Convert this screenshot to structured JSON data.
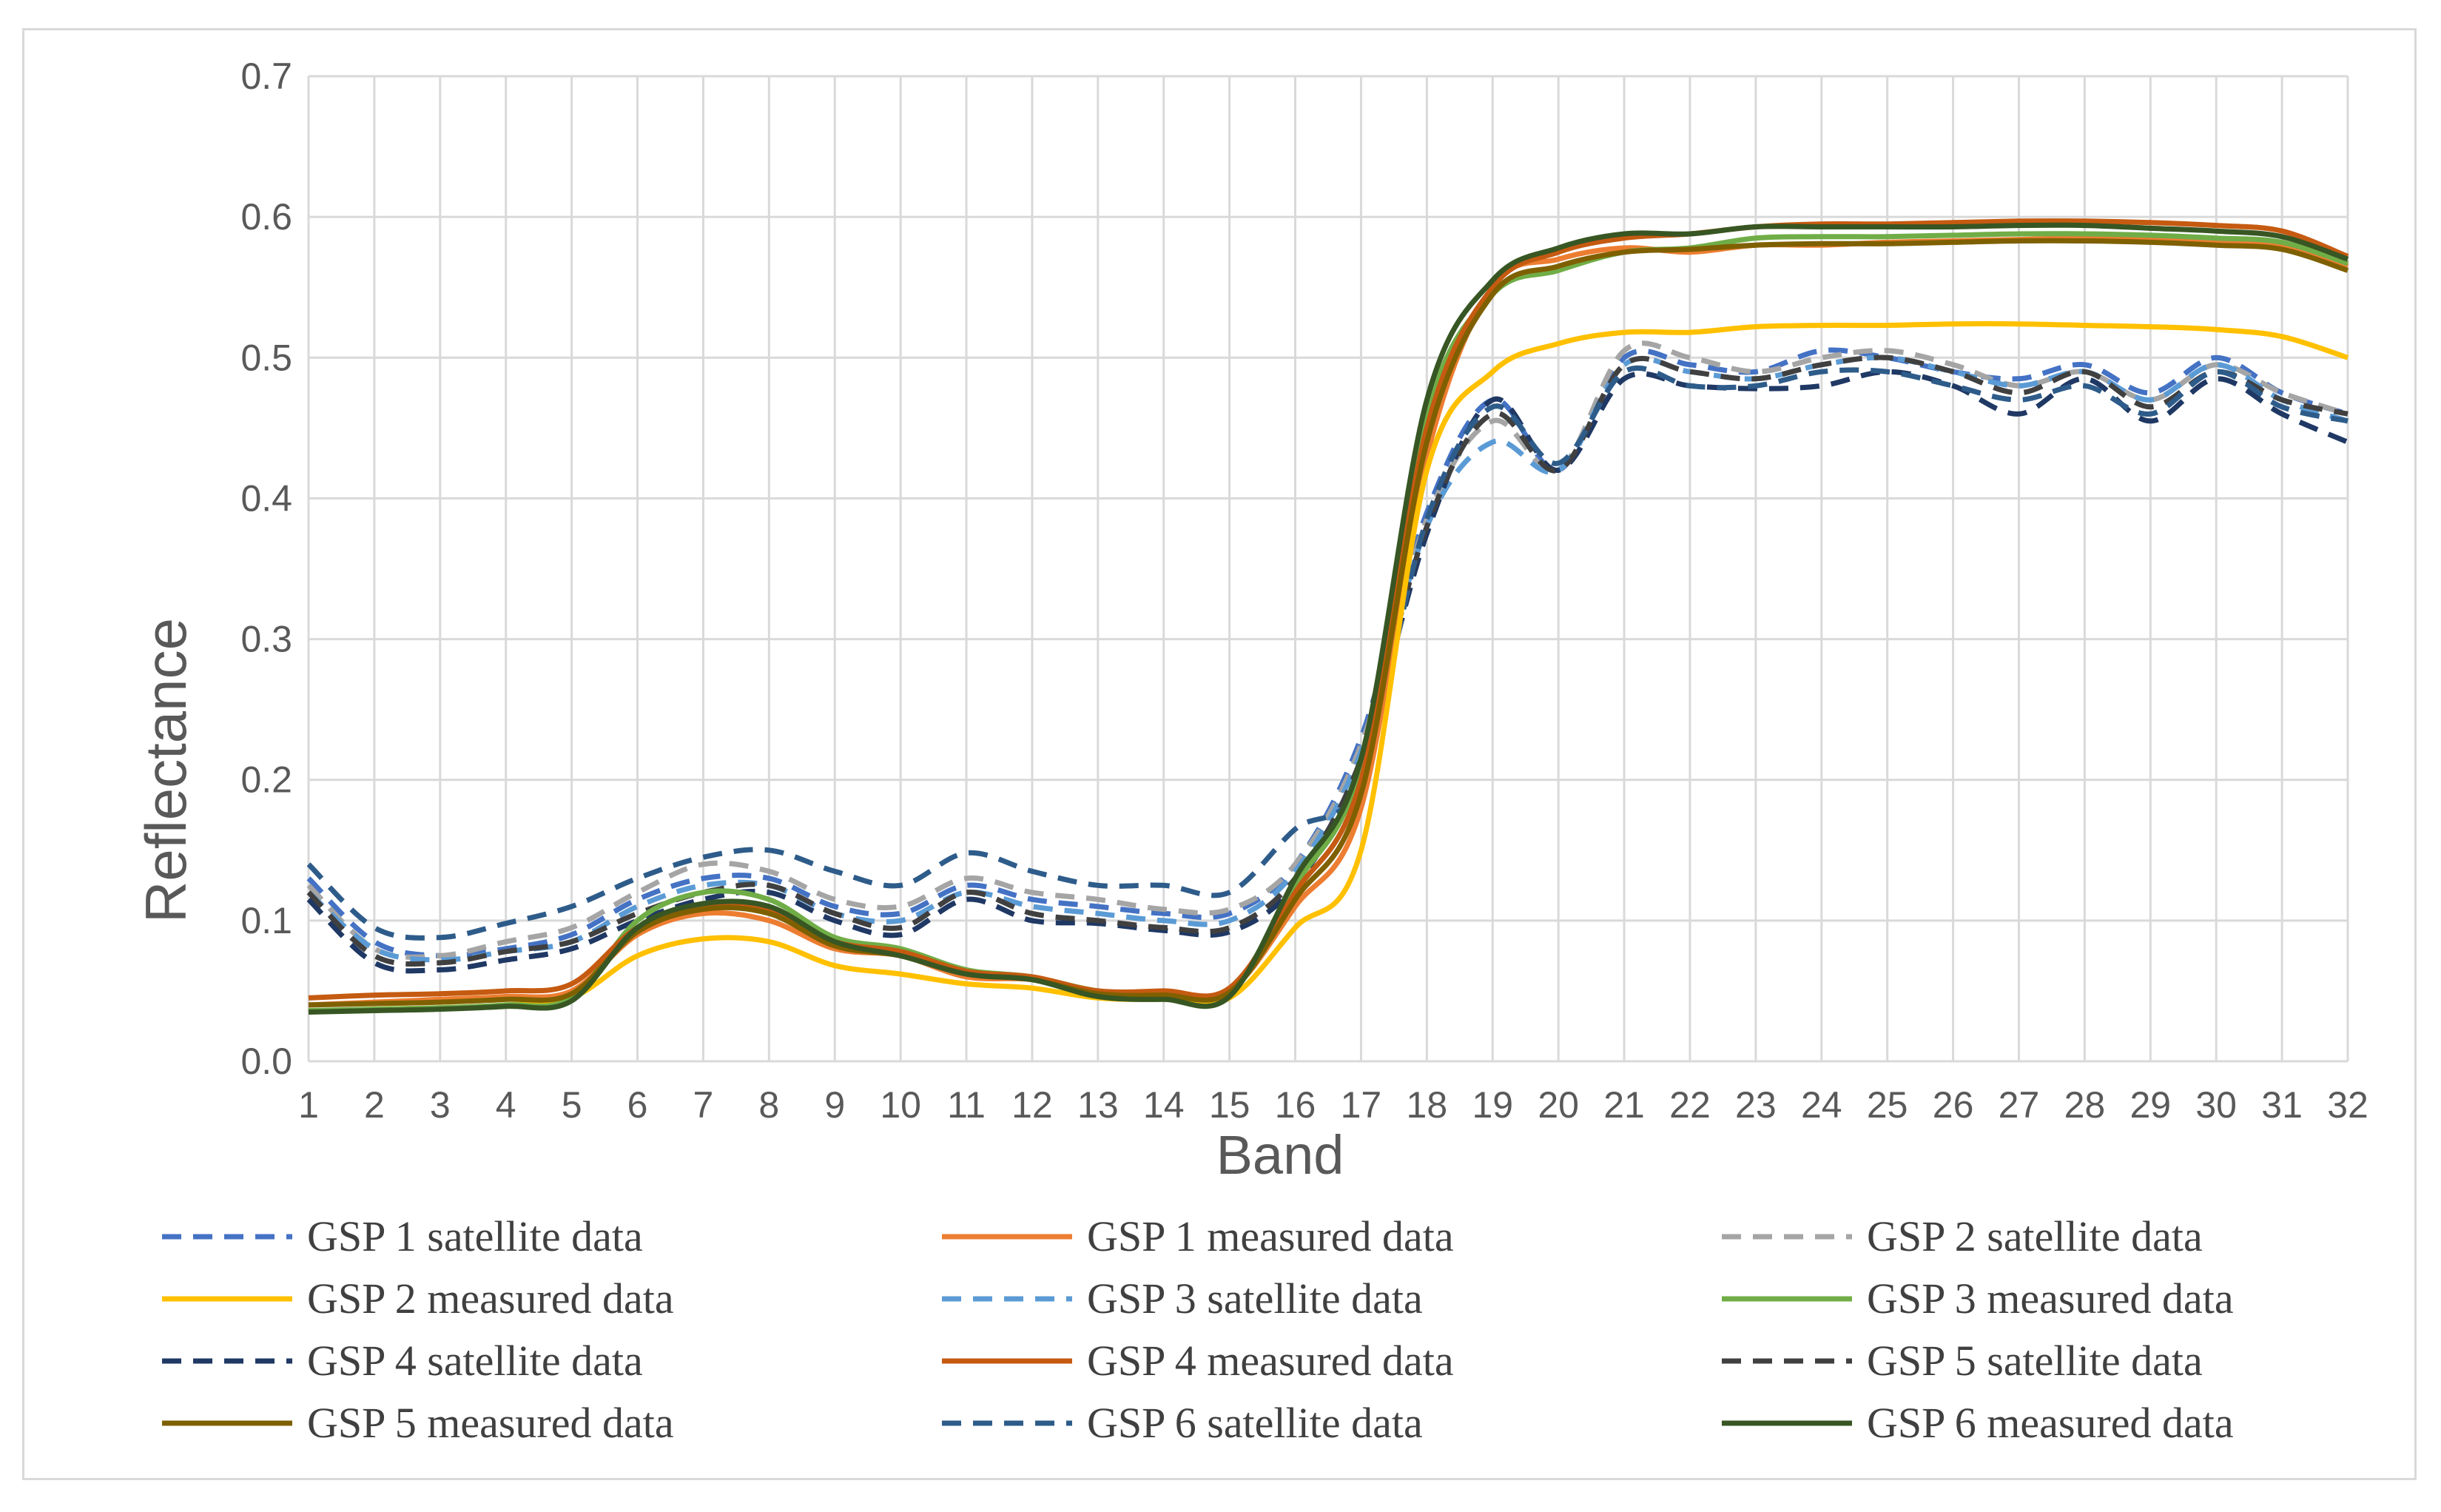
{
  "chart_data": {
    "type": "line",
    "title": "",
    "xlabel": "Band",
    "ylabel": "Reflectance",
    "xlim": [
      1,
      32
    ],
    "ylim": [
      0,
      0.7
    ],
    "yticks": [
      "0.0",
      "0.1",
      "0.2",
      "0.3",
      "0.4",
      "0.5",
      "0.6",
      "0.7"
    ],
    "x": [
      1,
      2,
      3,
      4,
      5,
      6,
      7,
      8,
      9,
      10,
      11,
      12,
      13,
      14,
      15,
      16,
      17,
      18,
      19,
      20,
      21,
      22,
      23,
      24,
      25,
      26,
      27,
      28,
      29,
      30,
      31,
      32
    ],
    "grid": true,
    "legend_position": "bottom",
    "series": [
      {
        "name": "GSP 1 satellite data",
        "color": "#4472c4",
        "style": "dashed",
        "values": [
          0.13,
          0.085,
          0.075,
          0.08,
          0.09,
          0.115,
          0.13,
          0.13,
          0.11,
          0.105,
          0.125,
          0.115,
          0.11,
          0.105,
          0.105,
          0.14,
          0.23,
          0.39,
          0.47,
          0.42,
          0.5,
          0.495,
          0.49,
          0.505,
          0.5,
          0.49,
          0.485,
          0.495,
          0.475,
          0.5,
          0.475,
          0.46
        ]
      },
      {
        "name": "GSP 1 measured data",
        "color": "#ed7d31",
        "style": "solid",
        "values": [
          0.04,
          0.042,
          0.044,
          0.046,
          0.05,
          0.09,
          0.105,
          0.1,
          0.08,
          0.075,
          0.06,
          0.058,
          0.048,
          0.048,
          0.05,
          0.11,
          0.18,
          0.43,
          0.55,
          0.57,
          0.578,
          0.575,
          0.58,
          0.58,
          0.582,
          0.583,
          0.584,
          0.585,
          0.584,
          0.583,
          0.58,
          0.565
        ]
      },
      {
        "name": "GSP 2 satellite data",
        "color": "#a5a5a5",
        "style": "dashed",
        "values": [
          0.125,
          0.08,
          0.075,
          0.085,
          0.095,
          0.12,
          0.14,
          0.135,
          0.115,
          0.11,
          0.13,
          0.12,
          0.115,
          0.108,
          0.108,
          0.14,
          0.225,
          0.385,
          0.455,
          0.42,
          0.505,
          0.5,
          0.49,
          0.5,
          0.505,
          0.495,
          0.48,
          0.49,
          0.47,
          0.495,
          0.475,
          0.46
        ]
      },
      {
        "name": "GSP 2 measured data",
        "color": "#ffc000",
        "style": "solid",
        "values": [
          0.035,
          0.037,
          0.038,
          0.04,
          0.045,
          0.075,
          0.087,
          0.085,
          0.068,
          0.062,
          0.055,
          0.052,
          0.045,
          0.044,
          0.045,
          0.095,
          0.15,
          0.42,
          0.49,
          0.51,
          0.518,
          0.518,
          0.522,
          0.523,
          0.523,
          0.524,
          0.524,
          0.523,
          0.522,
          0.52,
          0.515,
          0.5
        ]
      },
      {
        "name": "GSP 3 satellite data",
        "color": "#5b9bd5",
        "style": "dashed",
        "values": [
          0.12,
          0.08,
          0.072,
          0.078,
          0.085,
          0.11,
          0.125,
          0.125,
          0.105,
          0.1,
          0.12,
          0.11,
          0.105,
          0.1,
          0.1,
          0.135,
          0.22,
          0.38,
          0.44,
          0.42,
          0.495,
          0.49,
          0.485,
          0.495,
          0.5,
          0.49,
          0.48,
          0.49,
          0.47,
          0.495,
          0.47,
          0.455
        ]
      },
      {
        "name": "GSP 3 measured data",
        "color": "#70ad47",
        "style": "solid",
        "values": [
          0.036,
          0.037,
          0.038,
          0.04,
          0.045,
          0.1,
          0.12,
          0.115,
          0.088,
          0.08,
          0.065,
          0.06,
          0.05,
          0.048,
          0.05,
          0.125,
          0.21,
          0.46,
          0.545,
          0.562,
          0.575,
          0.578,
          0.585,
          0.586,
          0.586,
          0.587,
          0.588,
          0.588,
          0.587,
          0.585,
          0.582,
          0.567
        ]
      },
      {
        "name": "GSP 4 satellite data",
        "color": "#1f3864",
        "style": "dashed",
        "values": [
          0.115,
          0.07,
          0.065,
          0.072,
          0.08,
          0.1,
          0.115,
          0.12,
          0.1,
          0.09,
          0.115,
          0.1,
          0.098,
          0.093,
          0.092,
          0.125,
          0.21,
          0.375,
          0.47,
          0.42,
          0.485,
          0.48,
          0.478,
          0.48,
          0.49,
          0.48,
          0.46,
          0.485,
          0.455,
          0.485,
          0.46,
          0.44
        ]
      },
      {
        "name": "GSP 4 measured data",
        "color": "#c55a11",
        "style": "solid",
        "values": [
          0.045,
          0.047,
          0.048,
          0.05,
          0.055,
          0.095,
          0.11,
          0.108,
          0.085,
          0.078,
          0.064,
          0.06,
          0.05,
          0.05,
          0.052,
          0.12,
          0.2,
          0.45,
          0.55,
          0.575,
          0.585,
          0.588,
          0.593,
          0.595,
          0.595,
          0.596,
          0.597,
          0.597,
          0.596,
          0.594,
          0.59,
          0.572
        ]
      },
      {
        "name": "GSP 5 satellite data",
        "color": "#404040",
        "style": "dashed",
        "values": [
          0.12,
          0.075,
          0.07,
          0.078,
          0.085,
          0.105,
          0.12,
          0.125,
          0.105,
          0.095,
          0.12,
          0.105,
          0.1,
          0.095,
          0.095,
          0.13,
          0.215,
          0.38,
          0.46,
          0.42,
          0.495,
          0.49,
          0.485,
          0.495,
          0.5,
          0.49,
          0.475,
          0.49,
          0.465,
          0.49,
          0.47,
          0.46
        ]
      },
      {
        "name": "GSP 5 measured data",
        "color": "#7f6000",
        "style": "solid",
        "values": [
          0.04,
          0.041,
          0.042,
          0.044,
          0.048,
          0.092,
          0.108,
          0.105,
          0.082,
          0.075,
          0.062,
          0.058,
          0.048,
          0.047,
          0.049,
          0.115,
          0.19,
          0.44,
          0.545,
          0.565,
          0.575,
          0.577,
          0.58,
          0.581,
          0.581,
          0.582,
          0.583,
          0.583,
          0.582,
          0.58,
          0.577,
          0.562
        ]
      },
      {
        "name": "GSP 6 satellite data",
        "color": "#2e5c8a",
        "style": "dashed",
        "values": [
          0.14,
          0.095,
          0.088,
          0.098,
          0.11,
          0.13,
          0.145,
          0.15,
          0.135,
          0.125,
          0.148,
          0.135,
          0.125,
          0.125,
          0.12,
          0.165,
          0.2,
          0.385,
          0.465,
          0.425,
          0.49,
          0.48,
          0.48,
          0.49,
          0.49,
          0.48,
          0.47,
          0.48,
          0.46,
          0.49,
          0.465,
          0.455
        ]
      },
      {
        "name": "GSP 6 measured data",
        "color": "#375623",
        "style": "solid",
        "values": [
          0.035,
          0.036,
          0.037,
          0.039,
          0.043,
          0.095,
          0.112,
          0.11,
          0.085,
          0.075,
          0.062,
          0.058,
          0.046,
          0.044,
          0.046,
          0.13,
          0.215,
          0.47,
          0.555,
          0.578,
          0.588,
          0.588,
          0.593,
          0.593,
          0.593,
          0.593,
          0.594,
          0.594,
          0.592,
          0.59,
          0.586,
          0.57
        ]
      }
    ]
  }
}
